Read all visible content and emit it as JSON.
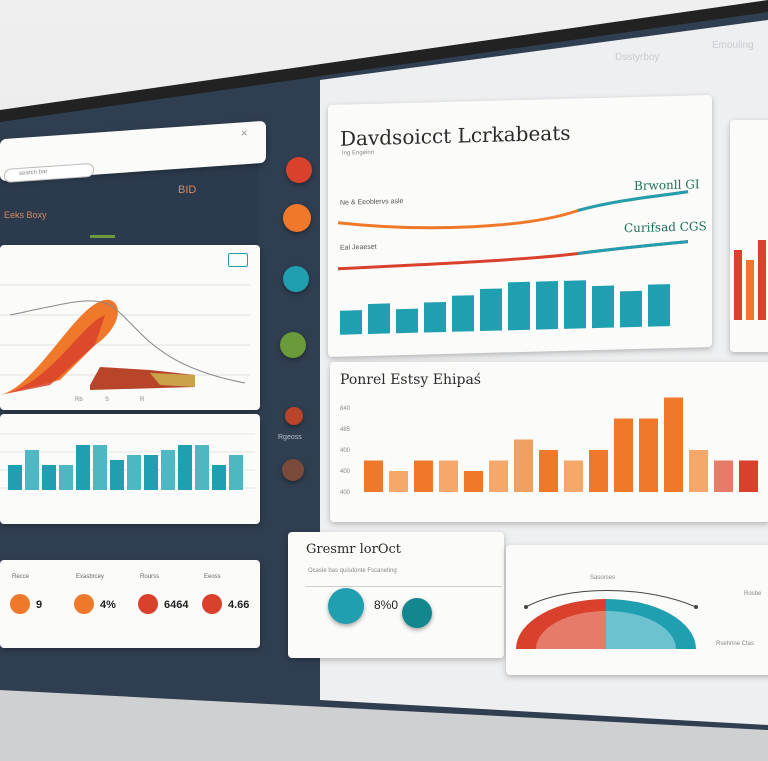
{
  "header": {
    "left_label": "Dsstyrboy",
    "right_label": "Emouling"
  },
  "search": {
    "placeholder": "search bar"
  },
  "tabs": {
    "tab_a": "Eeks Boxy",
    "tab_b": "BID"
  },
  "main_card": {
    "title": "Davdsoicct Lcrkabeats",
    "subtitle": "Ing Engeinn",
    "line1_label": "Ne & Eeoblervs asle",
    "line2_label": "Eal Jeaeset",
    "legend1": "Brwonll GI",
    "legend2": "Curifsad CGS"
  },
  "mid_card": {
    "title": "Ponrel Estsy Ehipaś"
  },
  "bottom_card": {
    "title": "Gresmr lorOct",
    "subtitle": "Ocasie bas quisdonte Fscaneting",
    "value": "8%0"
  },
  "kpis": [
    {
      "label": "Recce",
      "value": "9"
    },
    {
      "label": "Exasbrcey",
      "value": "4%"
    },
    {
      "label": "Rourss",
      "value": "6464"
    },
    {
      "label": "Eeoss",
      "value": "4.66"
    }
  ],
  "side_labels": {
    "recuss": "Rgeoss"
  },
  "pie_card": {
    "label_top": "Sasorses",
    "label_right": "Rosbe",
    "label_bottom": "Rsehnne Ctas"
  },
  "colors": {
    "teal": "#1f9fb0",
    "orange": "#f0782a",
    "red": "#d9412c",
    "navy": "#2e3e52",
    "green": "#6a9a3a"
  },
  "chart_data": [
    {
      "type": "bar",
      "title": "Davdsoicct Lcrkabeats",
      "series": [
        {
          "name": "",
          "values": [
            4,
            5,
            4,
            5,
            6,
            7,
            8,
            8,
            8,
            7,
            6,
            7
          ]
        }
      ],
      "ylim": [
        0,
        10
      ]
    },
    {
      "type": "bar",
      "title": "Ponrel Estsy Ehipaś",
      "series": [
        {
          "name": "",
          "values": [
            3,
            2,
            3,
            3,
            2,
            3,
            5,
            4,
            3,
            4,
            7,
            7,
            9,
            4,
            3,
            3
          ]
        }
      ],
      "ylim": [
        0,
        10
      ],
      "yticks": [
        "840",
        "485",
        "400",
        "400",
        "400"
      ]
    },
    {
      "type": "bar",
      "title": "",
      "series": [
        {
          "name": "",
          "values": [
            5,
            8,
            5,
            5,
            9,
            9,
            6,
            7,
            7,
            8,
            9,
            9,
            5,
            7
          ]
        }
      ],
      "ylim": [
        0,
        10
      ]
    },
    {
      "type": "area",
      "title": "",
      "series": [
        {
          "name": "",
          "values": [
            1,
            2,
            5,
            9,
            7,
            3,
            2
          ]
        }
      ]
    }
  ]
}
